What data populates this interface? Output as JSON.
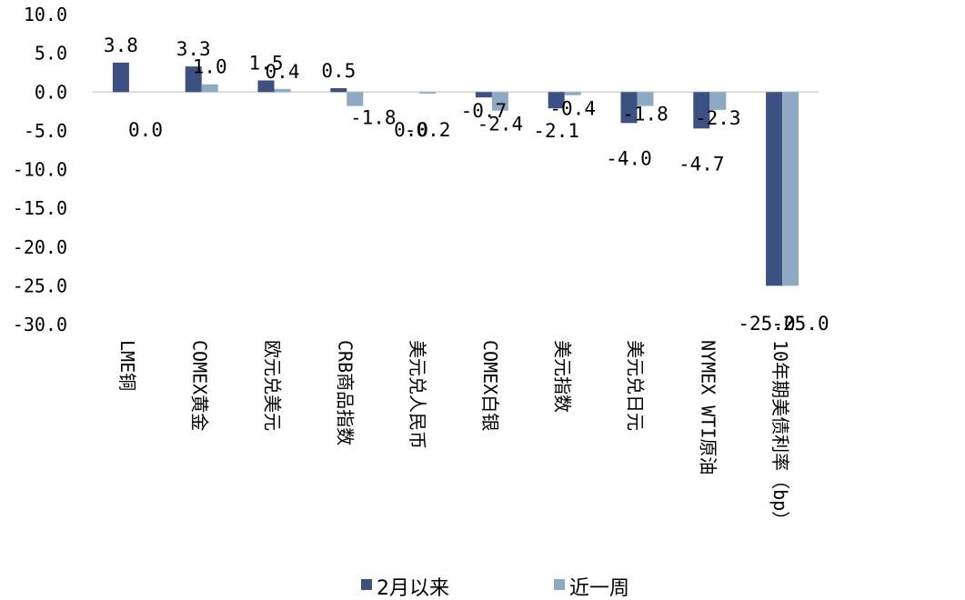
{
  "chart_data": {
    "type": "bar",
    "categories": [
      "LME铜",
      "COMEX黄金",
      "欧元兑美元",
      "CRB商品指数",
      "美元兑人民币",
      "COMEX白银",
      "美元指数",
      "美元兑日元",
      "NYMEX WTI原油",
      "10年期美债利率（bp）"
    ],
    "series": [
      {
        "name": "2月以来",
        "values": [
          3.8,
          3.3,
          1.5,
          0.5,
          0.0,
          -0.7,
          -2.1,
          -4.0,
          -4.7,
          -25.0
        ]
      },
      {
        "name": "近一周",
        "values": [
          0.0,
          1.0,
          0.4,
          -1.8,
          -0.2,
          -2.4,
          -0.4,
          -1.8,
          -2.3,
          -25.0
        ]
      }
    ],
    "ylim": [
      -30,
      10
    ],
    "ytick_labels": [
      "10.0",
      "5.0",
      "0.0",
      "-5.0",
      "-10.0",
      "-15.0",
      "-20.0",
      "-25.0",
      "-30.0"
    ],
    "data_labels": [
      [
        "3.8",
        "3.3",
        "1.5",
        "0.5",
        "0.0",
        "-0.7",
        "-2.1",
        "-4.0",
        "-4.7",
        "-25.0"
      ],
      [
        "0.0",
        "1.0",
        "0.4",
        "-1.8",
        "-0.2",
        "-2.4",
        "-0.4",
        "-1.8",
        "-2.3",
        "-25.0"
      ]
    ],
    "grid": false,
    "legend": "bottom",
    "colors": [
      "#3d5082",
      "#8ea9c4"
    ]
  }
}
